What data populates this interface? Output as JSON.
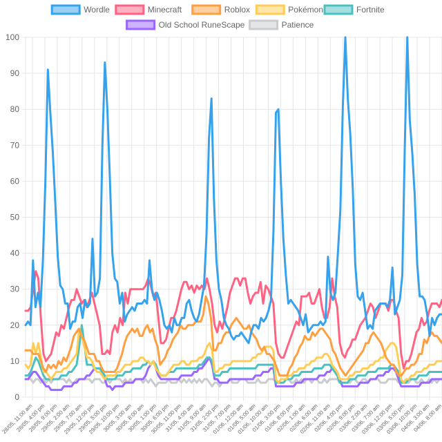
{
  "chart_data": {
    "type": "line",
    "title": "",
    "xlabel": "",
    "ylabel": "",
    "ylim": [
      0,
      100
    ],
    "y_ticks": [
      0,
      10,
      20,
      30,
      40,
      50,
      60,
      70,
      80,
      90,
      100
    ],
    "grid": true,
    "legend_position": "top",
    "x_labels": [
      "28/05, 11:00 am",
      "28/05, 4:00 pm",
      "28/05, 9:00 pm",
      "29/05, 2:00 am",
      "29/05, 7:00 am",
      "29/05, 12:00 pm",
      "29/05, 5:00 pm",
      "29/05, 10:00 pm",
      "30/05, 3:00 am",
      "30/05, 8:00 am",
      "30/05, 1:00 pm",
      "30/05, 6:00 pm",
      "30/05, 11:00 pm",
      "31/05, 4:00 am",
      "31/05, 9:00 am",
      "31/05, 2:00 pm",
      "31/05, 7:00 pm",
      "01/06, 12:00 am",
      "01/06, 5:00 am",
      "01/06, 10:00 am",
      "01/06, 3:00 pm",
      "01/06, 8:00 pm",
      "02/06, 1:00 am",
      "02/06, 6:00 am",
      "02/06, 11:00 am",
      "02/06, 4:00 pm",
      "02/06, 9:00 pm",
      "03/06, 2:00 am",
      "03/06, 7:00 am",
      "03/06, 12:00 pm",
      "03/06, 5:00 pm",
      "03/06, 10:00 pm",
      "04/06, 3:00 am",
      "04/06, 8:00 am"
    ],
    "series": [
      {
        "name": "Wordle",
        "color": "#36a2eb",
        "fill": "#9ad0f5",
        "values": [
          20,
          21,
          20,
          38,
          25,
          29,
          25,
          38,
          60,
          91,
          79,
          68,
          54,
          39,
          31,
          30,
          26,
          26,
          19,
          21,
          21,
          25,
          26,
          22,
          27,
          25,
          26,
          44,
          28,
          29,
          33,
          70,
          93,
          80,
          61,
          40,
          33,
          32,
          26,
          29,
          21,
          23,
          24,
          25,
          24,
          26,
          26,
          26,
          27,
          26,
          38,
          30,
          27,
          29,
          27,
          24,
          20,
          19,
          20,
          18,
          22,
          20,
          20,
          22,
          22,
          26,
          27,
          24,
          22,
          21,
          23,
          27,
          31,
          45,
          72,
          83,
          55,
          38,
          30,
          27,
          22,
          20,
          19,
          17,
          16,
          17,
          17,
          18,
          17,
          16,
          15,
          18,
          20,
          20,
          19,
          22,
          21,
          22,
          24,
          27,
          46,
          79,
          80,
          60,
          44,
          34,
          26,
          27,
          26,
          25,
          24,
          22,
          20,
          23,
          18,
          19,
          20,
          20,
          20,
          21,
          20,
          21,
          39,
          29,
          27,
          29,
          40,
          52,
          81,
          100,
          83,
          73,
          58,
          37,
          28,
          27,
          29,
          24,
          19,
          20,
          19,
          24,
          25,
          26,
          26,
          26,
          25,
          27,
          36,
          23,
          25,
          27,
          34,
          70,
          100,
          77,
          68,
          56,
          37,
          28,
          28,
          27,
          23,
          17,
          22,
          20,
          22,
          23,
          23
        ]
      },
      {
        "name": "Minecraft",
        "color": "#ff6384",
        "fill": "#ffb1c1",
        "values": [
          24,
          24,
          25,
          30,
          35,
          33,
          22,
          12,
          10,
          11,
          12,
          15,
          18,
          17,
          20,
          19,
          22,
          25,
          27,
          27,
          30,
          28,
          26,
          27,
          25,
          27,
          29,
          26,
          23,
          20,
          12,
          12,
          13,
          12,
          18,
          20,
          18,
          22,
          20,
          29,
          26,
          30,
          30,
          30,
          30,
          30,
          30,
          31,
          33,
          31,
          28,
          29,
          22,
          15,
          15,
          16,
          19,
          22,
          22,
          24,
          27,
          30,
          32,
          32,
          30,
          31,
          29,
          31,
          30,
          31,
          30,
          33,
          30,
          26,
          20,
          18,
          21,
          19,
          22,
          25,
          29,
          31,
          33,
          33,
          31,
          33,
          33,
          29,
          26,
          28,
          29,
          29,
          32,
          26,
          31,
          30,
          28,
          26,
          15,
          12,
          11,
          11,
          13,
          15,
          17,
          19,
          21,
          20,
          28,
          28,
          28,
          29,
          26,
          26,
          28,
          30,
          25,
          22,
          22,
          25,
          33,
          28,
          25,
          15,
          12,
          11,
          13,
          14,
          16,
          16,
          18,
          20,
          21,
          22,
          24,
          26,
          25,
          22,
          24,
          26,
          26,
          26,
          24,
          27,
          27,
          24,
          22,
          12,
          8,
          10,
          10,
          12,
          15,
          18,
          19,
          22,
          20,
          21,
          24,
          26,
          26,
          26,
          25,
          27
        ]
      },
      {
        "name": "Roblox",
        "color": "#ff9f40",
        "fill": "#ffcf9f",
        "values": [
          13,
          13,
          13,
          12,
          12,
          12,
          10,
          8,
          7,
          9,
          8,
          9,
          8,
          10,
          9,
          11,
          10,
          12,
          14,
          17,
          18,
          19,
          17,
          16,
          14,
          12,
          12,
          12,
          10,
          10,
          8,
          7,
          7,
          7,
          7,
          7,
          8,
          10,
          12,
          15,
          17,
          18,
          19,
          18,
          19,
          17,
          17,
          19,
          20,
          18,
          19,
          16,
          14,
          9,
          10,
          11,
          13,
          14,
          16,
          17,
          18,
          20,
          19,
          19,
          20,
          20,
          20,
          21,
          21,
          21,
          23,
          28,
          26,
          22,
          13,
          13,
          15,
          15,
          17,
          18,
          18,
          20,
          21,
          22,
          21,
          20,
          19,
          19,
          20,
          18,
          17,
          16,
          14,
          13,
          14,
          12,
          12,
          11,
          10,
          8,
          6,
          6,
          6,
          6,
          8,
          9,
          11,
          12,
          14,
          15,
          17,
          16,
          16,
          18,
          17,
          18,
          19,
          19,
          18,
          17,
          16,
          13,
          12,
          10,
          8,
          7,
          6,
          7,
          8,
          9,
          10,
          11,
          12,
          13,
          15,
          15,
          17,
          18,
          17,
          16,
          15,
          13,
          11,
          10,
          9,
          9,
          7,
          6,
          6,
          7,
          8,
          8,
          9,
          9,
          10,
          12,
          12,
          16,
          15,
          17,
          18,
          17,
          17,
          16,
          15
        ]
      },
      {
        "name": "Pokémon",
        "color": "#ffcd56",
        "fill": "#ffe6aa",
        "values": [
          9,
          8,
          9,
          15,
          12,
          15,
          11,
          7,
          7,
          6,
          5,
          6,
          7,
          7,
          7,
          8,
          8,
          9,
          10,
          11,
          12,
          19,
          17,
          14,
          11,
          11,
          10,
          8,
          7,
          7,
          6,
          5,
          6,
          6,
          6,
          6,
          7,
          7,
          8,
          9,
          9,
          9,
          10,
          10,
          10,
          11,
          11,
          10,
          10,
          9,
          10,
          8,
          7,
          6,
          6,
          6,
          7,
          8,
          9,
          9,
          9,
          10,
          10,
          9,
          9,
          10,
          10,
          10,
          11,
          11,
          12,
          14,
          15,
          13,
          7,
          7,
          8,
          8,
          9,
          9,
          9,
          10,
          10,
          10,
          10,
          10,
          10,
          10,
          10,
          11,
          11,
          12,
          12,
          13,
          14,
          14,
          14,
          13,
          5,
          4,
          5,
          5,
          5,
          6,
          6,
          7,
          7,
          8,
          8,
          8,
          9,
          9,
          10,
          10,
          11,
          11,
          11,
          12,
          12,
          11,
          9,
          8,
          7,
          5,
          5,
          5,
          5,
          6,
          6,
          7,
          7,
          7,
          8,
          8,
          8,
          9,
          9,
          10,
          10,
          11,
          11,
          13,
          14,
          15,
          15,
          14,
          10,
          5,
          4,
          5,
          5,
          6,
          6,
          7,
          7,
          7,
          8,
          8,
          9,
          9,
          9,
          10,
          10,
          10
        ]
      },
      {
        "name": "Fortnite",
        "color": "#4bc0c0",
        "fill": "#a5dfdf",
        "values": [
          6,
          6,
          7,
          9,
          11,
          10,
          8,
          6,
          5,
          5,
          5,
          5,
          5,
          5,
          6,
          6,
          6,
          7,
          7,
          8,
          9,
          14,
          20,
          15,
          9,
          9,
          9,
          8,
          8,
          8,
          7,
          6,
          5,
          5,
          5,
          5,
          6,
          6,
          6,
          7,
          7,
          7,
          8,
          8,
          8,
          8,
          9,
          9,
          10,
          9,
          10,
          9,
          7,
          6,
          6,
          6,
          7,
          7,
          7,
          8,
          8,
          8,
          8,
          8,
          8,
          8,
          8,
          8,
          9,
          9,
          10,
          11,
          11,
          10,
          6,
          6,
          6,
          7,
          7,
          7,
          8,
          8,
          8,
          8,
          8,
          8,
          8,
          8,
          8,
          8,
          8,
          9,
          9,
          9,
          9,
          9,
          9,
          9,
          4,
          4,
          4,
          4,
          5,
          5,
          5,
          6,
          6,
          6,
          7,
          7,
          7,
          7,
          7,
          8,
          8,
          8,
          8,
          9,
          9,
          9,
          8,
          7,
          6,
          4,
          4,
          4,
          4,
          5,
          5,
          5,
          6,
          6,
          6,
          6,
          7,
          7,
          7,
          7,
          8,
          8,
          8,
          8,
          8,
          9,
          9,
          8,
          7,
          4,
          4,
          4,
          5,
          5,
          5,
          5,
          6,
          6,
          6,
          6,
          7,
          7,
          7,
          7,
          7,
          7
        ]
      },
      {
        "name": "Old School RuneScape",
        "color": "#9966ff",
        "fill": "#ccb2ff",
        "values": [
          5,
          5,
          6,
          7,
          7,
          6,
          5,
          4,
          3,
          3,
          2,
          2,
          2,
          2,
          2,
          3,
          3,
          3,
          3,
          4,
          4,
          5,
          5,
          5,
          6,
          6,
          7,
          8,
          8,
          8,
          8,
          5,
          3,
          3,
          2,
          3,
          3,
          3,
          3,
          4,
          4,
          4,
          4,
          5,
          5,
          5,
          5,
          6,
          8,
          9,
          10,
          8,
          6,
          5,
          5,
          5,
          5,
          5,
          5,
          5,
          5,
          6,
          6,
          6,
          6,
          6,
          7,
          7,
          8,
          8,
          9,
          10,
          11,
          9,
          5,
          5,
          4,
          4,
          4,
          4,
          5,
          5,
          5,
          5,
          5,
          5,
          5,
          5,
          5,
          5,
          6,
          6,
          6,
          7,
          7,
          7,
          8,
          8,
          3,
          3,
          3,
          3,
          3,
          3,
          3,
          3,
          4,
          4,
          4,
          5,
          5,
          5,
          5,
          5,
          5,
          6,
          6,
          6,
          7,
          7,
          8,
          8,
          7,
          5,
          3,
          3,
          3,
          3,
          3,
          3,
          3,
          4,
          4,
          4,
          4,
          5,
          5,
          5,
          6,
          6,
          6,
          7,
          7,
          8,
          8,
          7,
          5,
          3,
          3,
          3,
          3,
          3,
          3,
          3,
          3,
          4,
          4,
          4,
          4,
          5,
          5,
          5,
          5,
          5
        ]
      },
      {
        "name": "Patience",
        "color": "#c9cbcf",
        "fill": "#e4e5e7",
        "values": [
          5,
          5,
          5,
          4,
          5,
          5,
          4,
          5,
          4,
          5,
          4,
          5,
          5,
          5,
          5,
          5,
          4,
          5,
          4,
          4,
          5,
          5,
          5,
          5,
          5,
          5,
          4,
          5,
          5,
          5,
          4,
          4,
          5,
          4,
          5,
          5,
          5,
          5,
          4,
          5,
          4,
          5,
          4,
          5,
          5,
          5,
          4,
          5,
          4,
          5,
          4,
          3,
          4,
          4,
          4,
          4,
          5,
          4,
          4,
          4,
          5,
          4,
          5,
          4,
          5,
          4,
          5,
          4,
          5,
          4,
          5,
          5,
          4,
          3,
          4,
          4,
          3,
          4,
          4,
          4,
          5,
          4,
          4,
          4,
          5,
          5,
          5,
          4,
          4,
          4,
          4,
          5,
          4,
          4,
          4,
          5,
          5,
          5,
          4,
          4,
          4,
          4,
          5,
          5,
          4,
          4,
          5,
          4,
          5,
          4,
          5,
          5,
          4,
          5,
          5,
          4,
          4,
          5,
          4,
          5,
          5,
          5,
          5,
          4,
          4,
          4,
          4,
          4,
          5,
          5,
          4,
          4,
          5,
          5,
          4,
          5,
          5,
          5,
          5,
          4,
          4,
          4,
          5,
          5,
          5,
          5,
          4,
          4,
          4,
          4,
          4,
          5,
          5,
          4,
          4,
          5,
          4,
          4,
          5,
          4,
          5,
          4,
          5,
          5
        ]
      }
    ]
  }
}
